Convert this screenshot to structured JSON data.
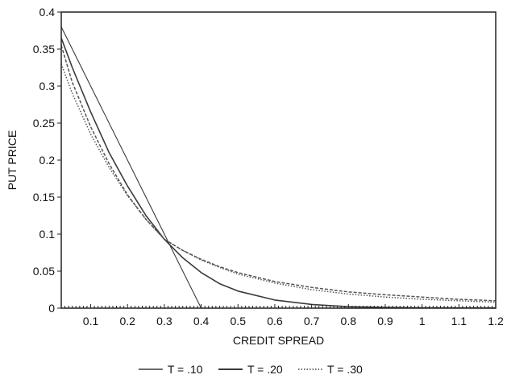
{
  "chart_data": {
    "type": "line",
    "title": "",
    "xlabel": "CREDIT SPREAD",
    "ylabel": "PUT PRICE",
    "xlim": [
      0.02,
      1.2
    ],
    "ylim": [
      0,
      0.4
    ],
    "x_ticks": [
      {
        "value": 0.1,
        "label": "0.1"
      },
      {
        "value": 0.2,
        "label": "0.2"
      },
      {
        "value": 0.3,
        "label": "0.3"
      },
      {
        "value": 0.4,
        "label": "0.4"
      },
      {
        "value": 0.5,
        "label": "0.5"
      },
      {
        "value": 0.6,
        "label": "0.6"
      },
      {
        "value": 0.7,
        "label": "0.7"
      },
      {
        "value": 0.8,
        "label": "0.8"
      },
      {
        "value": 0.9,
        "label": "0.9"
      },
      {
        "value": 1.0,
        "label": "1"
      },
      {
        "value": 1.1,
        "label": "1.1"
      },
      {
        "value": 1.2,
        "label": "1.2"
      }
    ],
    "y_ticks": [
      {
        "value": 0,
        "label": "0"
      },
      {
        "value": 0.05,
        "label": "0.05"
      },
      {
        "value": 0.1,
        "label": "0.1"
      },
      {
        "value": 0.15,
        "label": "0.15"
      },
      {
        "value": 0.2,
        "label": "0.2"
      },
      {
        "value": 0.25,
        "label": "0.25"
      },
      {
        "value": 0.3,
        "label": "0.3"
      },
      {
        "value": 0.35,
        "label": "0.35"
      },
      {
        "value": 0.4,
        "label": "0.4"
      }
    ],
    "grid": false,
    "legend_position": "bottom",
    "series": [
      {
        "name": "T = .10",
        "color": "#3a3a3a",
        "style": "solid-thin",
        "points": [
          [
            0.02,
            0.38
          ],
          [
            0.1,
            0.3
          ],
          [
            0.2,
            0.2
          ],
          [
            0.3,
            0.1
          ],
          [
            0.4,
            0.0
          ]
        ]
      },
      {
        "name": "T = .20",
        "color": "#3a3a3a",
        "style": "solid",
        "points": [
          [
            0.02,
            0.365
          ],
          [
            0.05,
            0.325
          ],
          [
            0.1,
            0.265
          ],
          [
            0.15,
            0.21
          ],
          [
            0.2,
            0.165
          ],
          [
            0.25,
            0.125
          ],
          [
            0.3,
            0.093
          ],
          [
            0.35,
            0.068
          ],
          [
            0.4,
            0.048
          ],
          [
            0.45,
            0.033
          ],
          [
            0.5,
            0.023
          ],
          [
            0.6,
            0.011
          ],
          [
            0.7,
            0.005
          ],
          [
            0.8,
            0.002
          ],
          [
            0.9,
            0.001
          ],
          [
            1.0,
            0.0005
          ],
          [
            1.2,
            0.0002
          ]
        ]
      },
      {
        "name": "T = .30",
        "color": "#555555",
        "style": "dotted",
        "points": [
          [
            0.02,
            0.33
          ],
          [
            0.05,
            0.29
          ],
          [
            0.1,
            0.235
          ],
          [
            0.15,
            0.19
          ],
          [
            0.2,
            0.152
          ],
          [
            0.25,
            0.12
          ],
          [
            0.3,
            0.093
          ],
          [
            0.35,
            0.078
          ],
          [
            0.4,
            0.065
          ],
          [
            0.45,
            0.055
          ],
          [
            0.5,
            0.046
          ],
          [
            0.6,
            0.034
          ],
          [
            0.7,
            0.025
          ],
          [
            0.8,
            0.019
          ],
          [
            0.9,
            0.015
          ],
          [
            1.0,
            0.012
          ],
          [
            1.1,
            0.01
          ],
          [
            1.2,
            0.008
          ]
        ]
      },
      {
        "name": "",
        "color": "#555555",
        "style": "dashed",
        "points": [
          [
            0.02,
            0.355
          ],
          [
            0.05,
            0.305
          ],
          [
            0.1,
            0.245
          ],
          [
            0.15,
            0.195
          ],
          [
            0.2,
            0.153
          ],
          [
            0.25,
            0.12
          ],
          [
            0.3,
            0.093
          ],
          [
            0.35,
            0.078
          ],
          [
            0.4,
            0.066
          ],
          [
            0.45,
            0.056
          ],
          [
            0.5,
            0.048
          ],
          [
            0.6,
            0.036
          ],
          [
            0.7,
            0.028
          ],
          [
            0.8,
            0.022
          ],
          [
            0.9,
            0.018
          ],
          [
            1.0,
            0.015
          ],
          [
            1.1,
            0.012
          ],
          [
            1.2,
            0.01
          ]
        ]
      }
    ]
  }
}
